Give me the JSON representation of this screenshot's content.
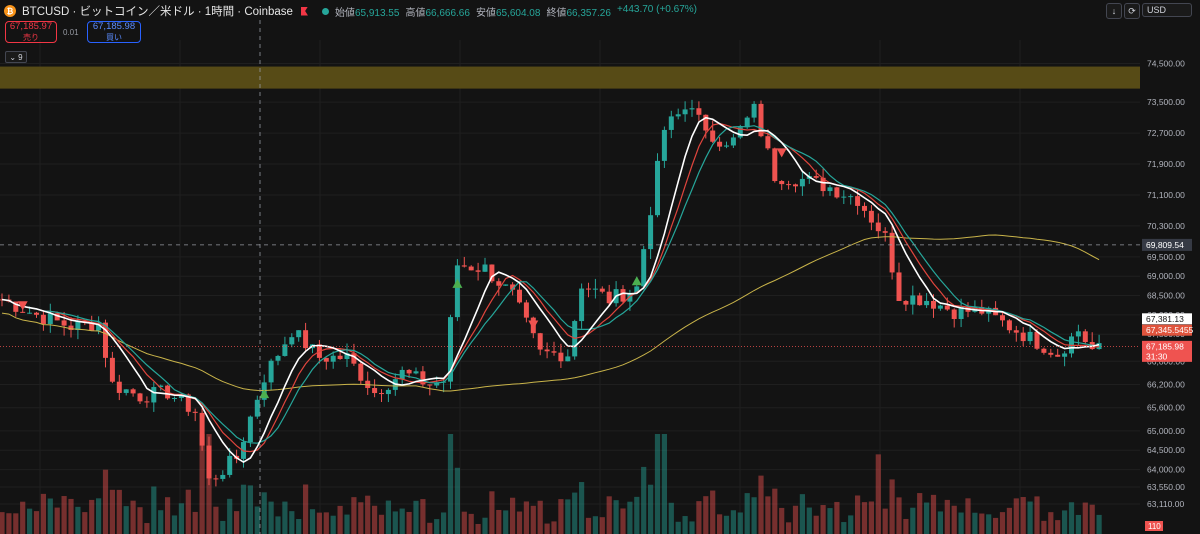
{
  "header": {
    "coin_icon": "bitcoin-icon",
    "title": "BTCUSD · ビットコイン／米ドル · 1時間 · Coinbase",
    "ohlc": [
      {
        "label": "始値",
        "value": "65,913.55"
      },
      {
        "label": "高値",
        "value": "66,666.66"
      },
      {
        "label": "安値",
        "value": "65,604.08"
      },
      {
        "label": "終値",
        "value": "66,357.26"
      }
    ],
    "change": "+443.70 (+0.67%)"
  },
  "trade": {
    "sell_price": "67,185.97",
    "sell_label": "売り",
    "spread": "0.01",
    "buy_price": "67,185.98",
    "buy_label": "買い"
  },
  "indicator_count": "9",
  "toolbar": {
    "currency": "USD",
    "download_icon": "download-icon",
    "refresh_icon": "refresh-icon"
  },
  "colors": {
    "up": "#26a69a",
    "down": "#ef5350",
    "background": "#131313",
    "ma_white": "#ffffff",
    "ma_red": "#e0453d",
    "ma_teal": "#26a69a",
    "ma_yellow": "#c9b44a",
    "zone": "#5b4e16"
  },
  "chart_data": {
    "type": "candlestick",
    "symbol": "BTCUSD",
    "interval": "1時間",
    "exchange": "Coinbase",
    "y_ticks": [
      "74,500.00",
      "73,500.00",
      "72,700.00",
      "71,900.00",
      "71,100.00",
      "70,300.00",
      "69,500.00",
      "69,000.00",
      "68,500.00",
      "68,000.00",
      "67,500.00",
      "66,800.00",
      "66,200.00",
      "65,600.00",
      "65,000.00",
      "64,500.00",
      "64,000.00",
      "63,550.00",
      "63,110.00"
    ],
    "ylim": [
      62800,
      74900
    ],
    "resistance_zone": [
      73850,
      74420
    ],
    "crosshair_price": "69,809.54",
    "crosshair_value": 69809.54,
    "price_labels": [
      {
        "text": "67,381.13",
        "value": 67381.13,
        "style": "white"
      },
      {
        "text": "67,345.5455",
        "value": 67345.5455,
        "style": "orange"
      },
      {
        "text": "67,185.98",
        "value": 67185.98,
        "style": "red"
      },
      {
        "text": "31:30",
        "value": 67185.98,
        "style": "red-countdown"
      }
    ],
    "current_price": 67185.98,
    "volume_label": "110",
    "markers": [
      {
        "type": "sell",
        "index": 3,
        "value": 68250
      },
      {
        "type": "buy",
        "index": 38,
        "value": 65950
      },
      {
        "type": "buy",
        "index": 66,
        "value": 68800
      },
      {
        "type": "sell",
        "index": 77,
        "value": 67750
      },
      {
        "type": "buy",
        "index": 92,
        "value": 68870
      },
      {
        "type": "sell",
        "index": 113,
        "value": 72200
      }
    ],
    "anchors": [
      [
        0,
        68400
      ],
      [
        5,
        68000
      ],
      [
        10,
        67700
      ],
      [
        14,
        67800
      ],
      [
        16,
        66200
      ],
      [
        20,
        65900
      ],
      [
        24,
        66000
      ],
      [
        28,
        65500
      ],
      [
        30,
        63700
      ],
      [
        34,
        64300
      ],
      [
        38,
        66400
      ],
      [
        42,
        67600
      ],
      [
        46,
        66900
      ],
      [
        50,
        66900
      ],
      [
        54,
        66000
      ],
      [
        58,
        66500
      ],
      [
        62,
        66200
      ],
      [
        64,
        66300
      ],
      [
        66,
        69300
      ],
      [
        70,
        69200
      ],
      [
        74,
        68500
      ],
      [
        78,
        67000
      ],
      [
        82,
        67000
      ],
      [
        84,
        68800
      ],
      [
        88,
        68400
      ],
      [
        92,
        68700
      ],
      [
        96,
        72800
      ],
      [
        100,
        73500
      ],
      [
        102,
        72600
      ],
      [
        106,
        72500
      ],
      [
        109,
        73300
      ],
      [
        112,
        71600
      ],
      [
        116,
        71500
      ],
      [
        120,
        71300
      ],
      [
        124,
        71000
      ],
      [
        128,
        70000
      ],
      [
        130,
        68500
      ],
      [
        134,
        68400
      ],
      [
        138,
        68100
      ],
      [
        142,
        68100
      ],
      [
        146,
        67700
      ],
      [
        150,
        67300
      ],
      [
        153,
        67000
      ],
      [
        156,
        67600
      ],
      [
        158,
        67100
      ]
    ]
  }
}
